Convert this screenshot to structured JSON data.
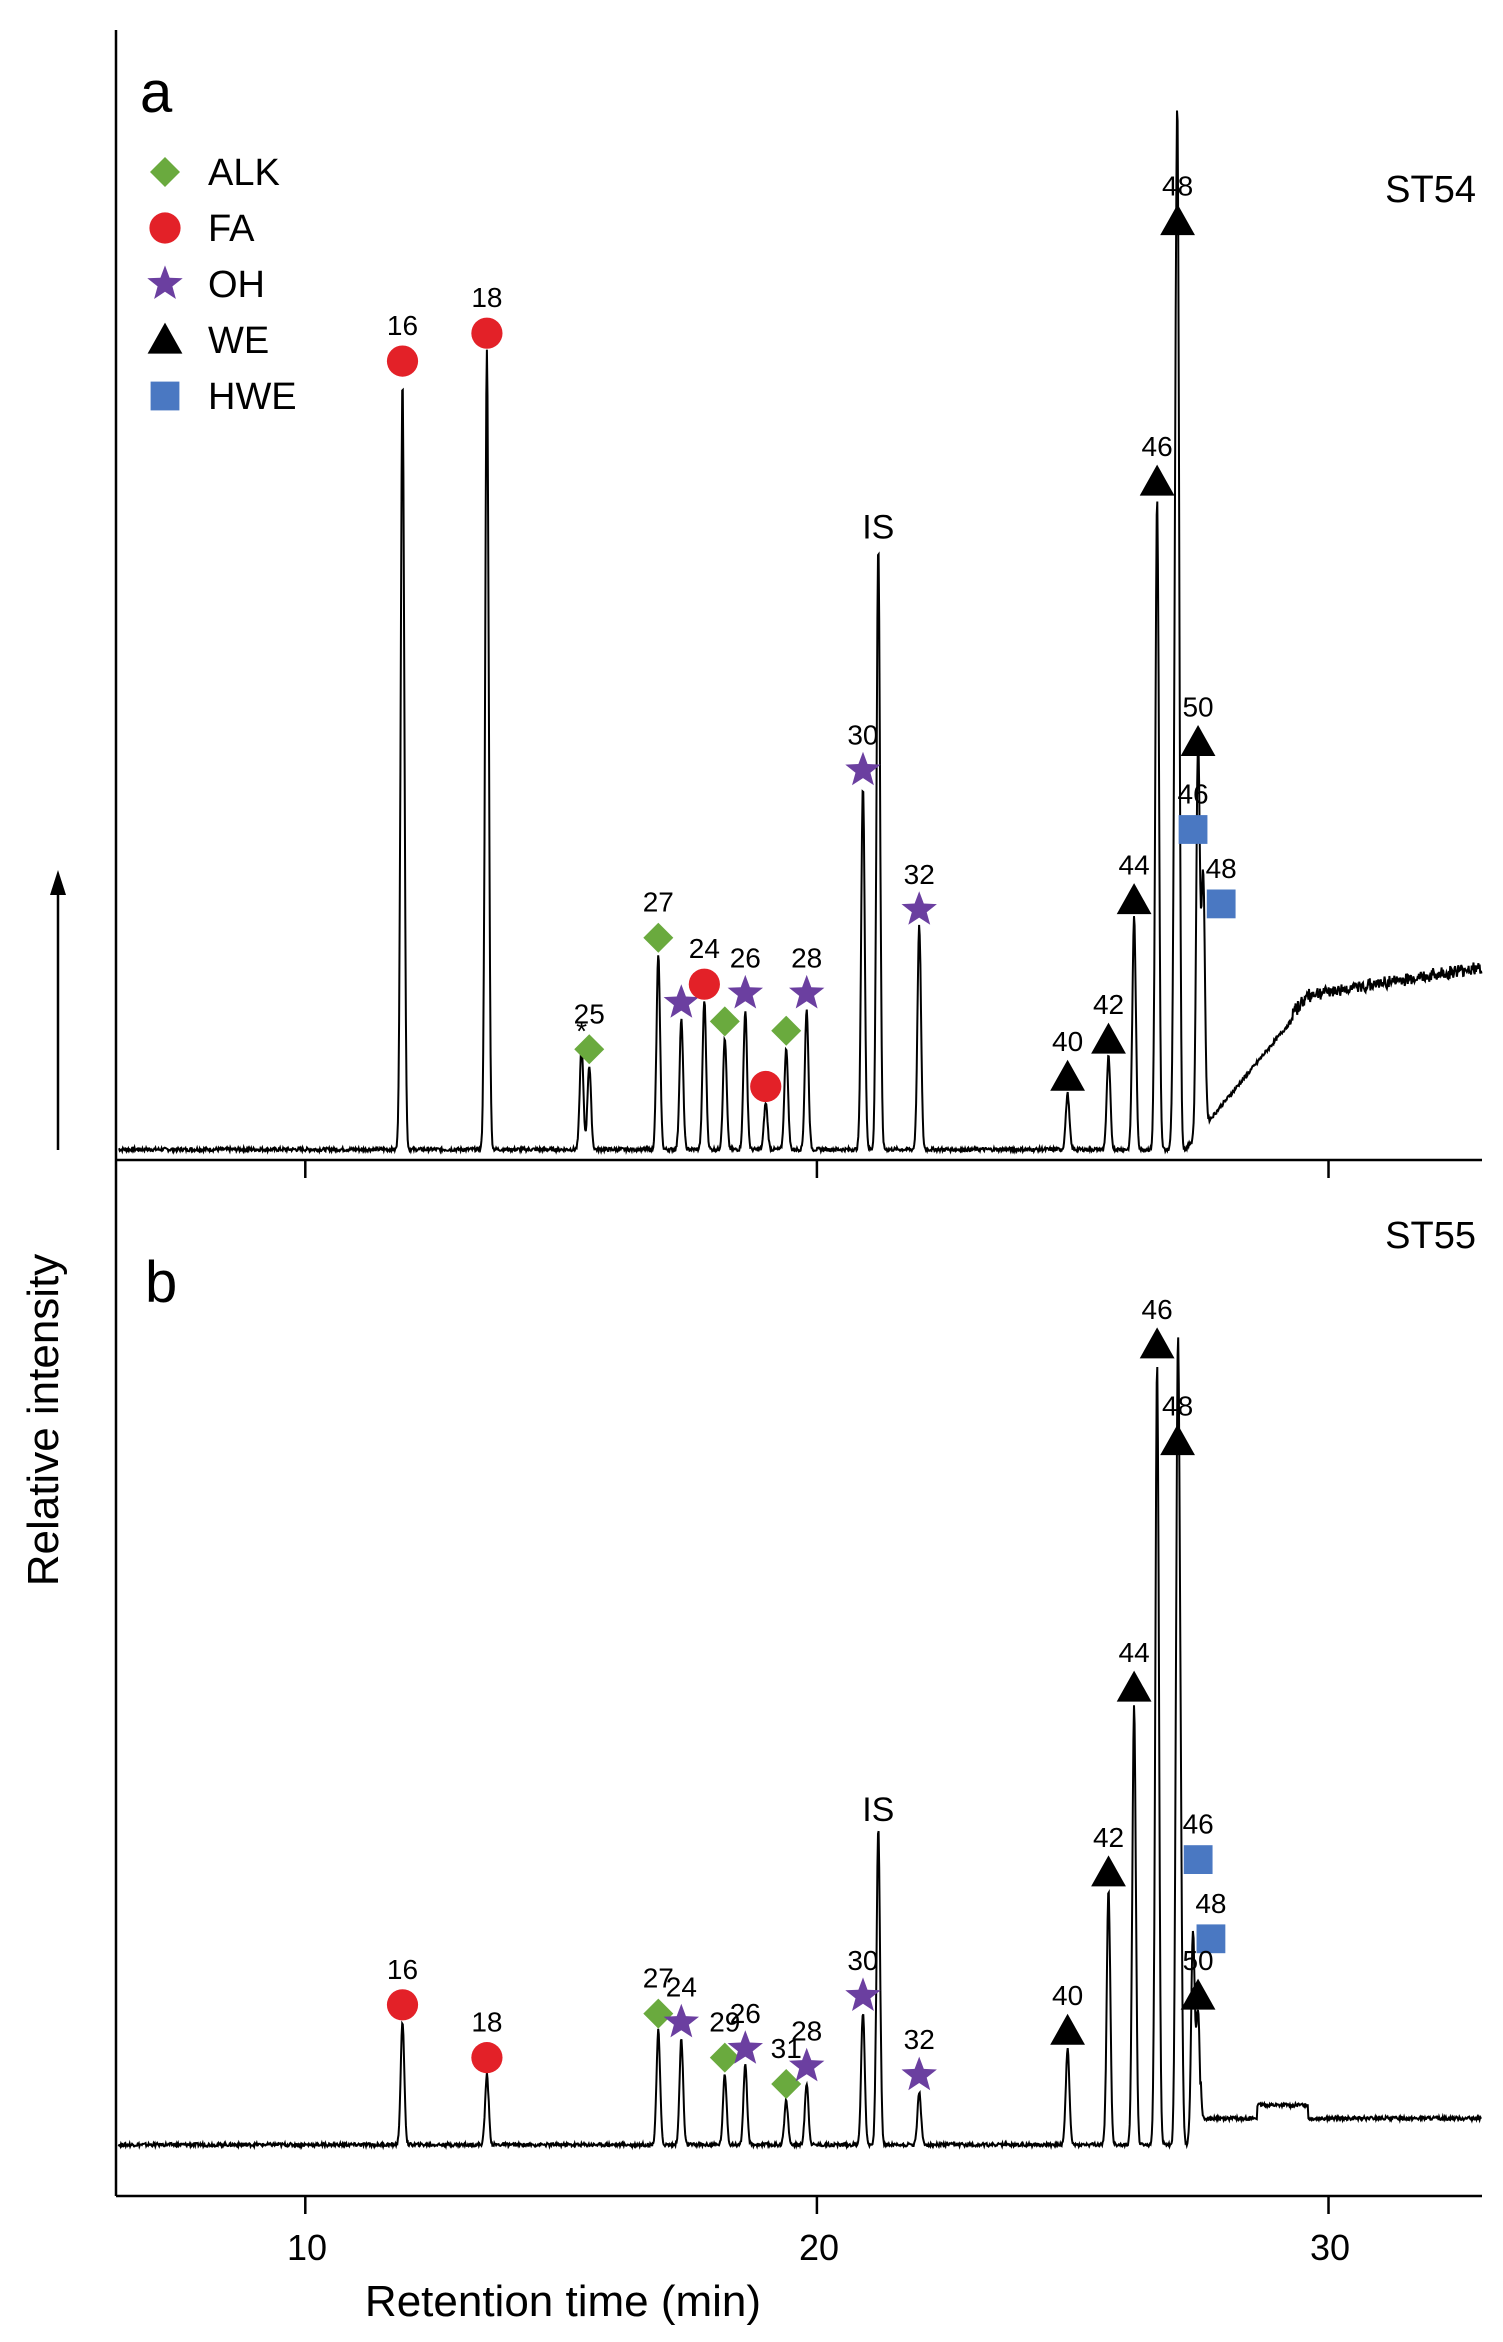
{
  "chart_data": [
    {
      "type": "line",
      "panel": "a",
      "sample": "ST54",
      "xlabel": "Retention time (min)",
      "ylabel": "Relative intensity",
      "xlim": [
        6.3,
        33
      ],
      "x_ticks": [
        "10",
        "20",
        "30"
      ],
      "legend": {
        "placement": "top-left",
        "entries": [
          {
            "label": "ALK",
            "marker": "diamond",
            "color": "#6aaa3e"
          },
          {
            "label": "FA",
            "marker": "circle",
            "color": "#e32128"
          },
          {
            "label": "OH",
            "marker": "star",
            "color": "#6b3fa0"
          },
          {
            "label": "WE",
            "marker": "triangle",
            "color": "#000000"
          },
          {
            "label": "HWE",
            "marker": "square",
            "color": "#4a78c2"
          }
        ]
      },
      "peaks": [
        {
          "x": 11.9,
          "y": 0.83,
          "marker": "circle",
          "label": "16"
        },
        {
          "x": 13.55,
          "y": 0.86,
          "marker": "circle",
          "label": "18"
        },
        {
          "x": 15.4,
          "y": 0.11,
          "marker": "none",
          "label": "*"
        },
        {
          "x": 15.55,
          "y": 0.09,
          "marker": "diamond",
          "label": "25"
        },
        {
          "x": 16.9,
          "y": 0.21,
          "marker": "diamond",
          "label": "27"
        },
        {
          "x": 17.35,
          "y": 0.14,
          "marker": "star",
          "label": ""
        },
        {
          "x": 17.8,
          "y": 0.16,
          "marker": "circle",
          "label": "24"
        },
        {
          "x": 18.2,
          "y": 0.12,
          "marker": "diamond",
          "label": ""
        },
        {
          "x": 18.6,
          "y": 0.15,
          "marker": "star",
          "label": "26"
        },
        {
          "x": 19.0,
          "y": 0.05,
          "marker": "circle",
          "label": ""
        },
        {
          "x": 19.4,
          "y": 0.11,
          "marker": "diamond",
          "label": ""
        },
        {
          "x": 19.8,
          "y": 0.15,
          "marker": "star",
          "label": "28"
        },
        {
          "x": 20.9,
          "y": 0.39,
          "marker": "star",
          "label": "30"
        },
        {
          "x": 21.2,
          "y": 0.65,
          "marker": "none",
          "label": "IS"
        },
        {
          "x": 22.0,
          "y": 0.24,
          "marker": "star",
          "label": "32"
        },
        {
          "x": 24.9,
          "y": 0.06,
          "marker": "triangle",
          "label": "40"
        },
        {
          "x": 25.7,
          "y": 0.1,
          "marker": "triangle",
          "label": "42"
        },
        {
          "x": 26.2,
          "y": 0.25,
          "marker": "triangle",
          "label": "44"
        },
        {
          "x": 26.65,
          "y": 0.7,
          "marker": "triangle",
          "label": "46"
        },
        {
          "x": 27.05,
          "y": 0.98,
          "marker": "triangle",
          "label": "48"
        },
        {
          "x": 27.0,
          "y": 0.35,
          "marker": "square",
          "label": "46"
        },
        {
          "x": 27.45,
          "y": 0.42,
          "marker": "triangle",
          "label": "50"
        },
        {
          "x": 27.55,
          "y": 0.27,
          "marker": "square",
          "label": "48"
        }
      ]
    },
    {
      "type": "line",
      "panel": "b",
      "sample": "ST55",
      "xlabel": "Retention time (min)",
      "ylabel": "Relative intensity",
      "xlim": [
        6.3,
        33
      ],
      "x_ticks": [
        "10",
        "20",
        "30"
      ],
      "peaks": [
        {
          "x": 11.9,
          "y": 0.14,
          "marker": "circle",
          "label": "16"
        },
        {
          "x": 13.55,
          "y": 0.08,
          "marker": "circle",
          "label": "18"
        },
        {
          "x": 16.9,
          "y": 0.13,
          "marker": "diamond",
          "label": "27"
        },
        {
          "x": 17.35,
          "y": 0.12,
          "marker": "star",
          "label": "24"
        },
        {
          "x": 18.2,
          "y": 0.08,
          "marker": "diamond",
          "label": "29"
        },
        {
          "x": 18.6,
          "y": 0.09,
          "marker": "star",
          "label": "26"
        },
        {
          "x": 19.4,
          "y": 0.05,
          "marker": "diamond",
          "label": "31"
        },
        {
          "x": 19.8,
          "y": 0.07,
          "marker": "star",
          "label": "28"
        },
        {
          "x": 20.9,
          "y": 0.15,
          "marker": "star",
          "label": "30"
        },
        {
          "x": 21.2,
          "y": 0.36,
          "marker": "none",
          "label": "IS"
        },
        {
          "x": 22.0,
          "y": 0.06,
          "marker": "star",
          "label": "32"
        },
        {
          "x": 24.9,
          "y": 0.11,
          "marker": "triangle",
          "label": "40"
        },
        {
          "x": 25.7,
          "y": 0.29,
          "marker": "triangle",
          "label": "42"
        },
        {
          "x": 26.2,
          "y": 0.5,
          "marker": "triangle",
          "label": "44"
        },
        {
          "x": 26.65,
          "y": 0.89,
          "marker": "triangle",
          "label": "46"
        },
        {
          "x": 27.05,
          "y": 0.78,
          "marker": "triangle",
          "label": "48"
        },
        {
          "x": 27.1,
          "y": 0.33,
          "marker": "square",
          "label": "46"
        },
        {
          "x": 27.35,
          "y": 0.24,
          "marker": "square",
          "label": "48"
        },
        {
          "x": 27.45,
          "y": 0.15,
          "marker": "triangle",
          "label": "50"
        }
      ]
    }
  ]
}
